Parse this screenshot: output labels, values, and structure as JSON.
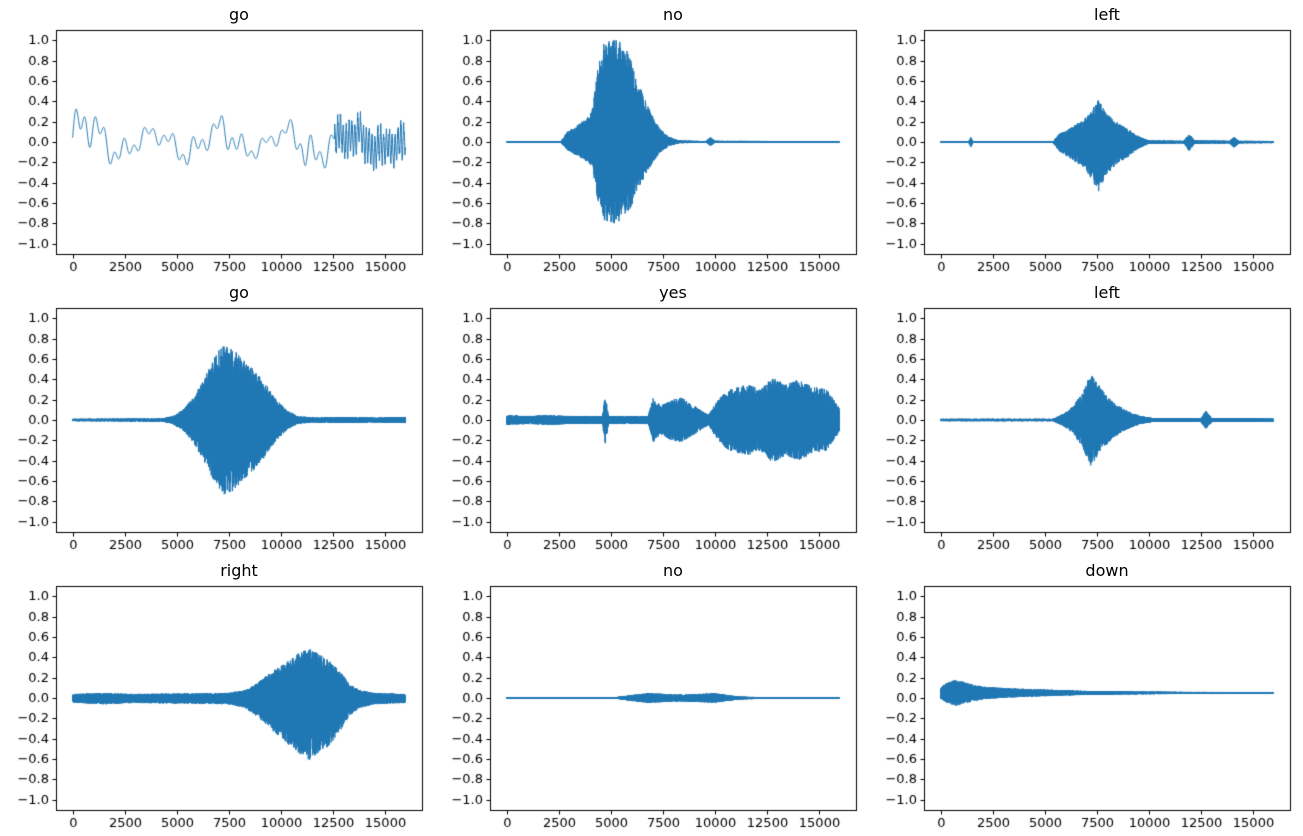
{
  "chart_data": {
    "type": "line",
    "figure_kind": "3x3 subplot grid of audio waveform plots (matplotlib style)",
    "grid": false,
    "legend": "none",
    "line_color": "#1f77b4",
    "axes_color": "#000000",
    "background": "#ffffff",
    "shared_axes": {
      "xlim": [
        -800,
        16800
      ],
      "ylim": [
        -1.1,
        1.1
      ],
      "data_x_range": [
        0,
        16000
      ],
      "xticks": [
        0,
        2500,
        5000,
        7500,
        10000,
        12500,
        15000
      ],
      "yticks": [
        1.0,
        0.8,
        0.6,
        0.4,
        0.2,
        0.0,
        -0.2,
        -0.4,
        -0.6,
        -0.8,
        -1.0
      ],
      "xlabel": "",
      "ylabel": ""
    },
    "subplots": [
      {
        "title": "go",
        "type": "line",
        "style": "smooth",
        "offset": 0,
        "peak_pos": 0.45,
        "peak_neg": -0.35,
        "envelope": [
          [
            0,
            0.35
          ],
          [
            300,
            0.45
          ],
          [
            1500,
            0.28
          ],
          [
            3000,
            0.18
          ],
          [
            4500,
            0.15
          ],
          [
            5500,
            0.25
          ],
          [
            6500,
            0.2
          ],
          [
            7500,
            0.3
          ],
          [
            8500,
            0.18
          ],
          [
            9500,
            0.12
          ],
          [
            10500,
            0.22
          ],
          [
            11200,
            0.38
          ],
          [
            12000,
            0.25
          ],
          [
            12800,
            0.3
          ],
          [
            14000,
            0.32
          ],
          [
            15000,
            0.28
          ],
          [
            16000,
            0.25
          ]
        ],
        "hf": {
          "from": 12600,
          "amp": 0.2
        }
      },
      {
        "title": "no",
        "type": "line",
        "style": "burst",
        "offset": 0,
        "neg_scale": 0.8,
        "peak_pos": 1.0,
        "peak_neg": -0.78,
        "envelope": [
          [
            0,
            0.006
          ],
          [
            2600,
            0.006
          ],
          [
            2900,
            0.1
          ],
          [
            3500,
            0.18
          ],
          [
            4100,
            0.3
          ],
          [
            4400,
            0.75
          ],
          [
            4700,
            1.0
          ],
          [
            5500,
            1.0
          ],
          [
            5900,
            0.85
          ],
          [
            6300,
            0.6
          ],
          [
            6800,
            0.35
          ],
          [
            7300,
            0.15
          ],
          [
            7800,
            0.05
          ],
          [
            8300,
            0.015
          ],
          [
            9600,
            0.01
          ],
          [
            9800,
            0.05
          ],
          [
            10000,
            0.012
          ],
          [
            16000,
            0.008
          ]
        ]
      },
      {
        "title": "left",
        "type": "line",
        "style": "burst",
        "offset": 0,
        "neg_scale": 1.15,
        "peak_pos": 0.32,
        "peak_neg": -0.5,
        "envelope": [
          [
            0,
            0.006
          ],
          [
            1350,
            0.006
          ],
          [
            1450,
            0.05
          ],
          [
            1550,
            0.006
          ],
          [
            5400,
            0.006
          ],
          [
            5700,
            0.08
          ],
          [
            6300,
            0.15
          ],
          [
            6900,
            0.22
          ],
          [
            7300,
            0.33
          ],
          [
            7600,
            0.42
          ],
          [
            7900,
            0.3
          ],
          [
            8400,
            0.2
          ],
          [
            9000,
            0.13
          ],
          [
            9500,
            0.06
          ],
          [
            10000,
            0.015
          ],
          [
            11700,
            0.012
          ],
          [
            11950,
            0.08
          ],
          [
            12200,
            0.015
          ],
          [
            13900,
            0.012
          ],
          [
            14100,
            0.05
          ],
          [
            14350,
            0.012
          ],
          [
            16000,
            0.01
          ]
        ]
      },
      {
        "title": "go",
        "type": "line",
        "style": "burst",
        "offset": 0,
        "neg_scale": 1.0,
        "peak_pos": 0.77,
        "peak_neg": -0.75,
        "envelope": [
          [
            0,
            0.012
          ],
          [
            4300,
            0.015
          ],
          [
            4800,
            0.04
          ],
          [
            5300,
            0.1
          ],
          [
            5800,
            0.22
          ],
          [
            6300,
            0.4
          ],
          [
            6800,
            0.6
          ],
          [
            7200,
            0.75
          ],
          [
            7600,
            0.72
          ],
          [
            8100,
            0.62
          ],
          [
            8700,
            0.5
          ],
          [
            9300,
            0.35
          ],
          [
            9800,
            0.2
          ],
          [
            10300,
            0.1
          ],
          [
            10800,
            0.04
          ],
          [
            11500,
            0.025
          ],
          [
            13000,
            0.03
          ],
          [
            14500,
            0.025
          ],
          [
            16000,
            0.03
          ]
        ]
      },
      {
        "title": "yes",
        "type": "line",
        "style": "burst",
        "offset": 0,
        "neg_scale": 1.0,
        "peak_pos": 0.45,
        "peak_neg": -0.45,
        "envelope": [
          [
            0,
            0.05
          ],
          [
            1000,
            0.04
          ],
          [
            2000,
            0.05
          ],
          [
            3000,
            0.04
          ],
          [
            4600,
            0.04
          ],
          [
            4750,
            0.25
          ],
          [
            4900,
            0.04
          ],
          [
            6800,
            0.04
          ],
          [
            7050,
            0.22
          ],
          [
            7400,
            0.14
          ],
          [
            7900,
            0.2
          ],
          [
            8400,
            0.22
          ],
          [
            8900,
            0.16
          ],
          [
            9400,
            0.09
          ],
          [
            9700,
            0.05
          ],
          [
            10000,
            0.15
          ],
          [
            10500,
            0.28
          ],
          [
            11000,
            0.32
          ],
          [
            11600,
            0.35
          ],
          [
            12200,
            0.3
          ],
          [
            12800,
            0.42
          ],
          [
            13400,
            0.35
          ],
          [
            14000,
            0.4
          ],
          [
            14700,
            0.33
          ],
          [
            15400,
            0.3
          ],
          [
            16000,
            0.12
          ]
        ]
      },
      {
        "title": "left",
        "type": "line",
        "style": "burst",
        "offset": 0,
        "neg_scale": 1.0,
        "peak_pos": 0.45,
        "peak_neg": -0.45,
        "envelope": [
          [
            0,
            0.012
          ],
          [
            5400,
            0.012
          ],
          [
            5900,
            0.06
          ],
          [
            6400,
            0.14
          ],
          [
            6900,
            0.3
          ],
          [
            7200,
            0.45
          ],
          [
            7500,
            0.38
          ],
          [
            7900,
            0.26
          ],
          [
            8400,
            0.16
          ],
          [
            9000,
            0.09
          ],
          [
            9600,
            0.04
          ],
          [
            10200,
            0.02
          ],
          [
            12500,
            0.015
          ],
          [
            12750,
            0.09
          ],
          [
            13050,
            0.02
          ],
          [
            16000,
            0.015
          ]
        ]
      },
      {
        "title": "right",
        "type": "line",
        "style": "burst",
        "offset": 0,
        "neg_scale": 1.25,
        "peak_pos": 0.5,
        "peak_neg": -0.65,
        "envelope": [
          [
            0,
            0.04
          ],
          [
            1500,
            0.05
          ],
          [
            3000,
            0.04
          ],
          [
            5000,
            0.045
          ],
          [
            7500,
            0.05
          ],
          [
            8300,
            0.08
          ],
          [
            8900,
            0.15
          ],
          [
            9500,
            0.25
          ],
          [
            10100,
            0.33
          ],
          [
            10700,
            0.42
          ],
          [
            11300,
            0.5
          ],
          [
            11800,
            0.44
          ],
          [
            12300,
            0.38
          ],
          [
            12800,
            0.28
          ],
          [
            13300,
            0.14
          ],
          [
            13800,
            0.08
          ],
          [
            14500,
            0.05
          ],
          [
            16000,
            0.04
          ]
        ]
      },
      {
        "title": "no",
        "type": "line",
        "style": "burst",
        "offset": 0,
        "neg_scale": 1.0,
        "peak_pos": 0.06,
        "peak_neg": -0.05,
        "envelope": [
          [
            0,
            0.008
          ],
          [
            5300,
            0.01
          ],
          [
            6000,
            0.03
          ],
          [
            6800,
            0.05
          ],
          [
            7600,
            0.04
          ],
          [
            8400,
            0.035
          ],
          [
            9200,
            0.04
          ],
          [
            10000,
            0.05
          ],
          [
            10600,
            0.03
          ],
          [
            11200,
            0.015
          ],
          [
            12000,
            0.01
          ],
          [
            16000,
            0.008
          ]
        ]
      },
      {
        "title": "down",
        "type": "line",
        "style": "burst",
        "offset": 0.05,
        "neg_scale": 1.0,
        "peak_pos": 0.18,
        "peak_neg": -0.08,
        "envelope": [
          [
            0,
            0.06
          ],
          [
            300,
            0.1
          ],
          [
            700,
            0.13
          ],
          [
            1100,
            0.11
          ],
          [
            1600,
            0.08
          ],
          [
            2200,
            0.06
          ],
          [
            3000,
            0.05
          ],
          [
            4000,
            0.04
          ],
          [
            5500,
            0.03
          ],
          [
            7000,
            0.02
          ],
          [
            9000,
            0.015
          ],
          [
            12000,
            0.01
          ],
          [
            16000,
            0.008
          ]
        ]
      }
    ]
  }
}
